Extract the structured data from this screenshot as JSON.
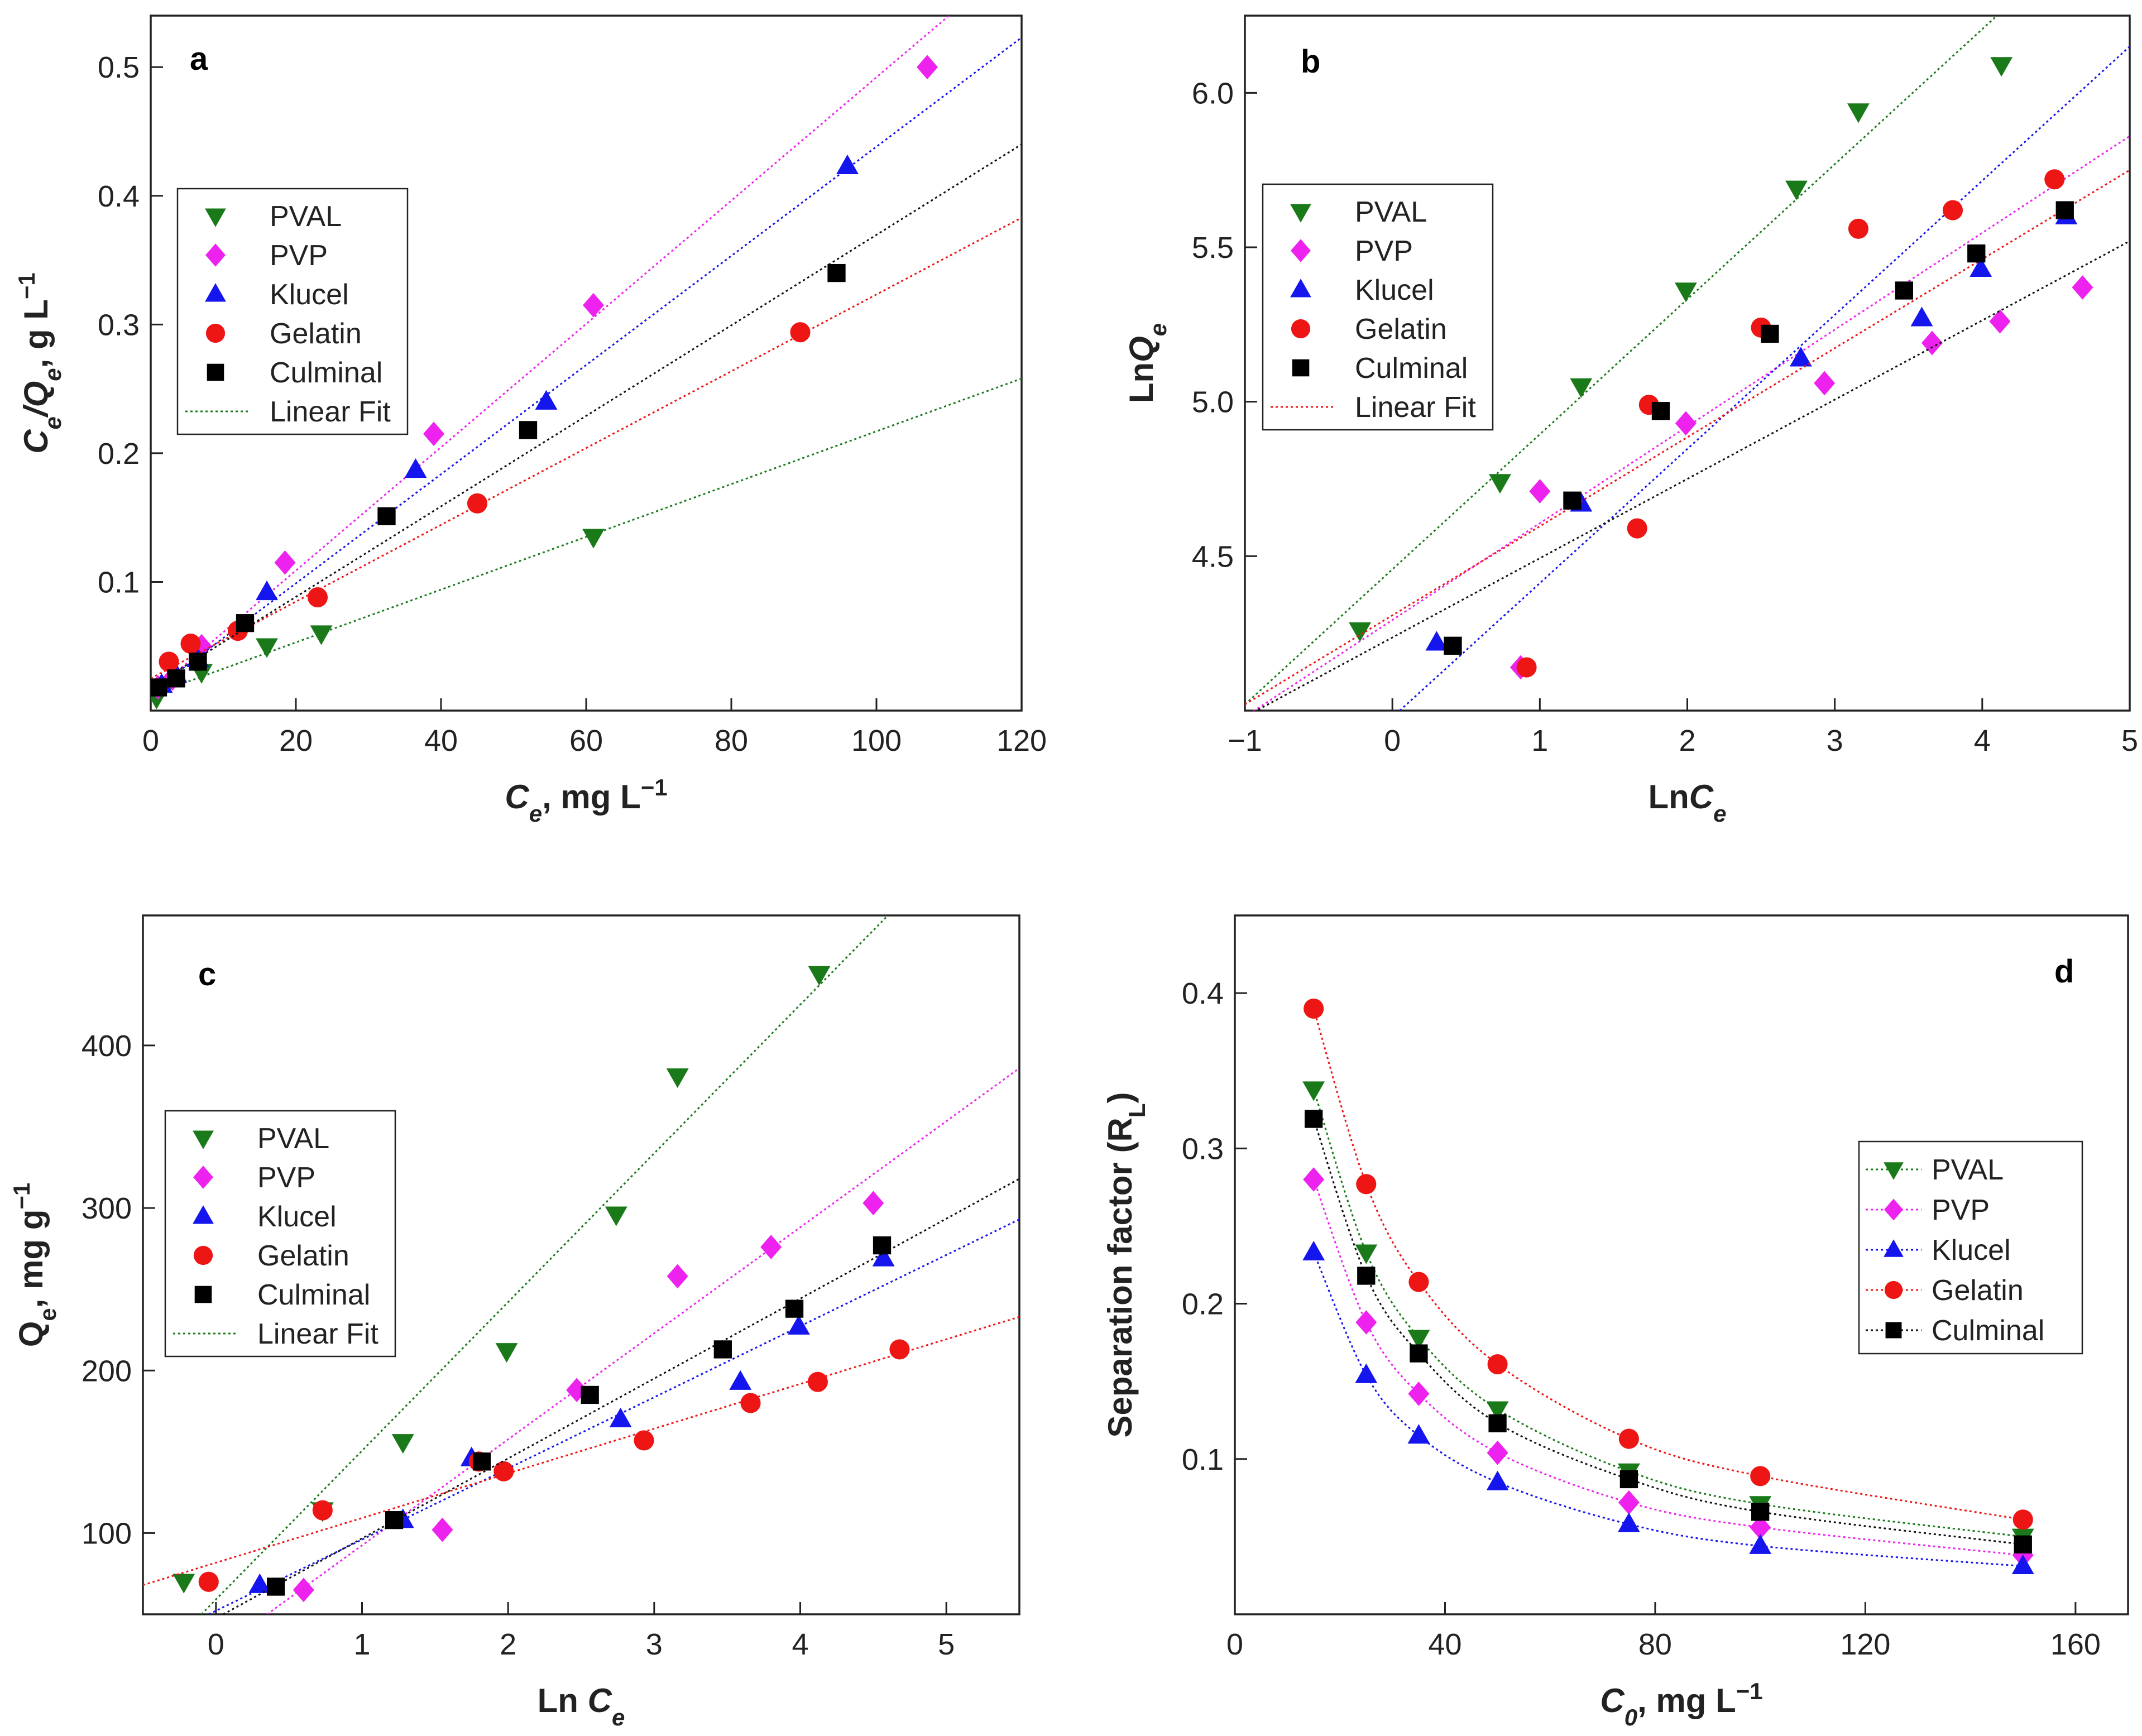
{
  "styles": {
    "PVAL": {
      "color": "#1a7a1a",
      "marker": "triangle-down"
    },
    "PVP": {
      "color": "#ee22ee",
      "marker": "diamond"
    },
    "Klucel": {
      "color": "#1515ee",
      "marker": "triangle-up"
    },
    "Gelatin": {
      "color": "#ee1515",
      "marker": "circle"
    },
    "Culminal": {
      "color": "#000000",
      "marker": "square"
    }
  },
  "chart_data": [
    {
      "panel": "a",
      "type": "scatter",
      "xlabel": {
        "main": "C",
        "sub": "e",
        "rest": ", mg L",
        "sup": "−1"
      },
      "ylabel": {
        "main": "C",
        "sub": "e",
        "mid": "/Q",
        "sub2": "e",
        "rest": ", g L",
        "sup": "−1"
      },
      "xlim": [
        0,
        120
      ],
      "ylim": [
        0,
        0.54
      ],
      "xticks": [
        0,
        20,
        40,
        60,
        80,
        100,
        120
      ],
      "yticks": [
        0.1,
        0.2,
        0.3,
        0.4,
        0.5
      ],
      "legend_entries": [
        "PVAL",
        "PVP",
        "Klucel",
        "Gelatin",
        "Culminal",
        "Linear Fit"
      ],
      "legend_style": "markers",
      "series": [
        {
          "name": "PVAL",
          "x": [
            0.8,
            7,
            16,
            23.5,
            61
          ],
          "y": [
            0.01,
            0.03,
            0.05,
            0.06,
            0.135
          ],
          "fit": [
            [
              0,
              0.012
            ],
            [
              120,
              0.258
            ]
          ]
        },
        {
          "name": "PVP",
          "x": [
            1,
            3,
            7,
            18.5,
            39,
            61,
            107
          ],
          "y": [
            0.018,
            0.025,
            0.05,
            0.115,
            0.215,
            0.315,
            0.5
          ],
          "fit": [
            [
              0,
              0.013
            ],
            [
              110,
              0.54
            ]
          ]
        },
        {
          "name": "Klucel",
          "x": [
            1.5,
            3.5,
            6.5,
            16,
            36.5,
            54.5,
            96
          ],
          "y": [
            0.02,
            0.028,
            0.04,
            0.092,
            0.187,
            0.24,
            0.423
          ],
          "fit": [
            [
              0,
              0.014
            ],
            [
              120,
              0.523
            ]
          ]
        },
        {
          "name": "Gelatin",
          "x": [
            2.5,
            5.5,
            12,
            23,
            45,
            89.5
          ],
          "y": [
            0.038,
            0.052,
            0.062,
            0.088,
            0.161,
            0.294
          ],
          "fit": [
            [
              0,
              0.025
            ],
            [
              120,
              0.383
            ]
          ]
        },
        {
          "name": "Culminal",
          "x": [
            1,
            3.5,
            6.5,
            13,
            32.5,
            52,
            94.5
          ],
          "y": [
            0.018,
            0.025,
            0.038,
            0.068,
            0.151,
            0.218,
            0.34
          ],
          "fit": [
            [
              0,
              0.018
            ],
            [
              120,
              0.44
            ]
          ]
        }
      ]
    },
    {
      "panel": "b",
      "type": "scatter",
      "xlabel": {
        "main": "Ln",
        "sub": "",
        "rest": "",
        "sup": "",
        "italic": "C",
        "italic_sub": "e"
      },
      "ylabel": {
        "main": "Ln",
        "italic": "Q",
        "italic_sub": "e"
      },
      "xlim": [
        -1,
        5
      ],
      "ylim": [
        4.0,
        6.25
      ],
      "xticks": [
        -1,
        0,
        1,
        2,
        3,
        4,
        5
      ],
      "xtick_labels": [
        "−1",
        "0",
        "1",
        "2",
        "3",
        "4",
        "5"
      ],
      "yticks": [
        4.5,
        5.0,
        5.5,
        6.0
      ],
      "ytick_labels": [
        "4.5",
        "5.0",
        "5.5",
        "6.0"
      ],
      "legend_entries": [
        "PVAL",
        "PVP",
        "Klucel",
        "Gelatin",
        "Culminal",
        "Linear Fit"
      ],
      "legend_style": "markers",
      "series": [
        {
          "name": "PVAL",
          "x": [
            -0.22,
            0.73,
            1.28,
            1.99,
            2.74,
            3.16,
            4.13
          ],
          "y": [
            4.26,
            4.74,
            5.05,
            5.36,
            5.69,
            5.94,
            6.09
          ],
          "fit": [
            [
              -1,
              4.02
            ],
            [
              4.1,
              6.25
            ]
          ]
        },
        {
          "name": "PVP",
          "x": [
            0.87,
            1.0,
            1.99,
            2.93,
            3.66,
            4.12,
            4.68
          ],
          "y": [
            4.14,
            4.71,
            4.93,
            5.06,
            5.19,
            5.26,
            5.37
          ],
          "fit": [
            [
              -1,
              3.98
            ],
            [
              5,
              5.86
            ]
          ]
        },
        {
          "name": "Klucel",
          "x": [
            0.3,
            1.28,
            2.77,
            3.59,
            3.99,
            4.57
          ],
          "y": [
            4.22,
            4.67,
            5.14,
            5.27,
            5.43,
            5.6
          ],
          "fit": [
            [
              0.05,
              4.0
            ],
            [
              5,
              6.15
            ]
          ]
        },
        {
          "name": "Gelatin",
          "x": [
            0.91,
            1.66,
            1.74,
            2.5,
            3.16,
            3.8,
            4.49
          ],
          "y": [
            4.14,
            4.59,
            4.99,
            5.24,
            5.56,
            5.62,
            5.72
          ],
          "fit": [
            [
              -1,
              4.02
            ],
            [
              5,
              5.75
            ]
          ]
        },
        {
          "name": "Culminal",
          "x": [
            0.41,
            1.22,
            1.82,
            2.56,
            3.47,
            3.96,
            4.56
          ],
          "y": [
            4.21,
            4.68,
            4.97,
            5.22,
            5.36,
            5.48,
            5.62
          ],
          "fit": [
            [
              -1,
              3.98
            ],
            [
              5,
              5.52
            ]
          ]
        }
      ]
    },
    {
      "panel": "c",
      "type": "scatter",
      "xlabel": {
        "main": "Ln ",
        "italic": "C",
        "italic_sub": "e"
      },
      "ylabel": {
        "main": "Q",
        "sub": "e",
        "rest": ", mg g",
        "sup": "−1"
      },
      "xlim": [
        -0.5,
        5.5
      ],
      "ylim": [
        50,
        480
      ],
      "xticks": [
        0,
        1,
        2,
        3,
        4,
        5
      ],
      "yticks": [
        100,
        200,
        300,
        400
      ],
      "legend_entries": [
        "PVAL",
        "PVP",
        "Klucel",
        "Gelatin",
        "Culminal",
        "Linear Fit"
      ],
      "legend_style": "markers",
      "series": [
        {
          "name": "PVAL",
          "x": [
            -0.22,
            0.73,
            1.28,
            1.99,
            2.74,
            3.16,
            4.13
          ],
          "y": [
            70,
            114,
            156,
            212,
            296,
            381,
            444
          ],
          "fit": [
            [
              -0.1,
              50
            ],
            [
              4.6,
              480
            ]
          ]
        },
        {
          "name": "PVP",
          "x": [
            0.6,
            1.55,
            2.47,
            3.16,
            3.8,
            4.5
          ],
          "y": [
            65,
            102,
            188,
            258,
            276,
            303
          ],
          "fit": [
            [
              0.35,
              50
            ],
            [
              5.5,
              386
            ]
          ]
        },
        {
          "name": "Klucel",
          "x": [
            0.3,
            1.28,
            1.75,
            2.77,
            3.59,
            3.99,
            4.57
          ],
          "y": [
            68,
            108,
            146,
            170,
            193,
            227,
            269
          ],
          "fit": [
            [
              -0.05,
              50
            ],
            [
              5.5,
              293
            ]
          ]
        },
        {
          "name": "Gelatin",
          "x": [
            -0.05,
            0.73,
            1.8,
            1.97,
            2.93,
            3.66,
            4.12,
            4.68
          ],
          "y": [
            70,
            114,
            144,
            138,
            157,
            180,
            193,
            213
          ],
          "fit": [
            [
              -0.5,
              68
            ],
            [
              5.5,
              233
            ]
          ]
        },
        {
          "name": "Culminal",
          "x": [
            0.41,
            1.22,
            1.82,
            2.56,
            3.47,
            3.96,
            4.56
          ],
          "y": [
            67,
            108,
            144,
            185,
            213,
            238,
            277
          ],
          "fit": [
            [
              0.05,
              50
            ],
            [
              5.5,
              318
            ]
          ]
        }
      ]
    },
    {
      "panel": "d",
      "type": "line",
      "xlabel": {
        "main": "C",
        "sub": "0",
        "rest": ", mg L",
        "sup": "−1"
      },
      "ylabel": {
        "main": "Separation factor (R",
        "sub": "L",
        "rest": ")"
      },
      "xlim": [
        0,
        170
      ],
      "ylim": [
        0,
        0.45
      ],
      "xticks": [
        0,
        40,
        80,
        120,
        160
      ],
      "yticks": [
        0.1,
        0.2,
        0.3,
        0.4
      ],
      "legend_entries": [
        "PVAL",
        "PVP",
        "Klucel",
        "Gelatin",
        "Culminal"
      ],
      "legend_style": "line-markers",
      "x": [
        15,
        25,
        35,
        50,
        75,
        100,
        150
      ],
      "series": [
        {
          "name": "PVAL",
          "y": [
            0.338,
            0.233,
            0.178,
            0.132,
            0.092,
            0.071,
            0.05
          ]
        },
        {
          "name": "PVP",
          "y": [
            0.28,
            0.188,
            0.142,
            0.104,
            0.072,
            0.056,
            0.038
          ]
        },
        {
          "name": "Klucel",
          "y": [
            0.233,
            0.154,
            0.115,
            0.085,
            0.058,
            0.044,
            0.031
          ]
        },
        {
          "name": "Gelatin",
          "y": [
            0.39,
            0.277,
            0.214,
            0.161,
            0.113,
            0.089,
            0.061
          ]
        },
        {
          "name": "Culminal",
          "y": [
            0.319,
            0.218,
            0.168,
            0.123,
            0.087,
            0.066,
            0.045
          ]
        }
      ]
    }
  ]
}
